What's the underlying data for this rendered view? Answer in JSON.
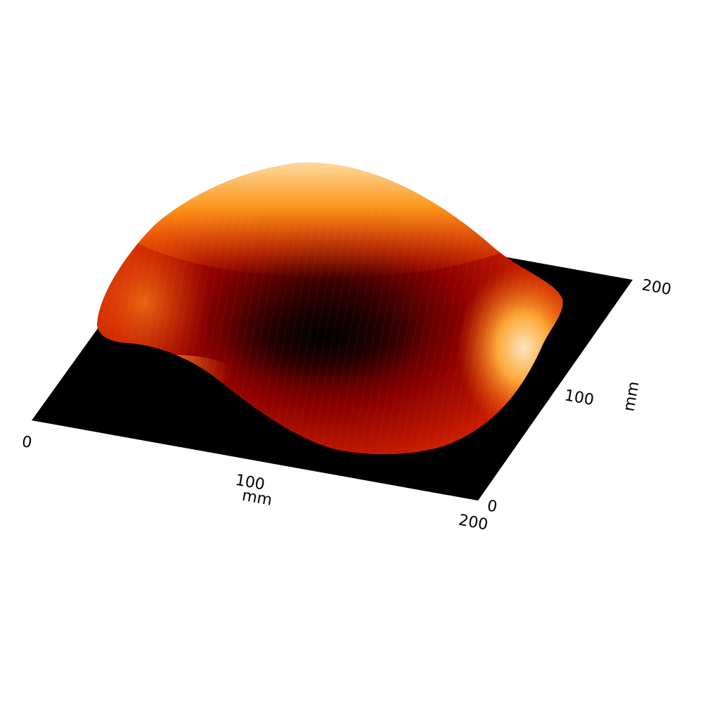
{
  "chart_data": {
    "type": "surface",
    "view": "3d-perspective",
    "colormap": "hot",
    "background": "#ffffff",
    "base_color": "#000000",
    "x_axis": {
      "label": "mm",
      "range": [
        0,
        200
      ],
      "ticks": [
        {
          "value": 0,
          "label": "0"
        },
        {
          "value": 100,
          "label": "100"
        },
        {
          "value": 200,
          "label": "200"
        }
      ]
    },
    "y_axis": {
      "label": "mm",
      "range": [
        0,
        200
      ],
      "ticks": [
        {
          "value": 0,
          "label": "0"
        },
        {
          "value": 100,
          "label": "100"
        },
        {
          "value": 200,
          "label": "200"
        }
      ]
    },
    "surface_summary": {
      "shape": "domed wafer-like surface, high ridge toward back, central depression",
      "minimum_near_mm": [
        110,
        95
      ],
      "maxima_near_mm": [
        [
          200,
          150
        ],
        [
          10,
          190
        ]
      ]
    },
    "colors": {
      "low": "#000000",
      "mid_low": "#8b0000",
      "mid": "#d42a00",
      "mid_high": "#ff8c00",
      "high": "#fff6e0"
    }
  }
}
